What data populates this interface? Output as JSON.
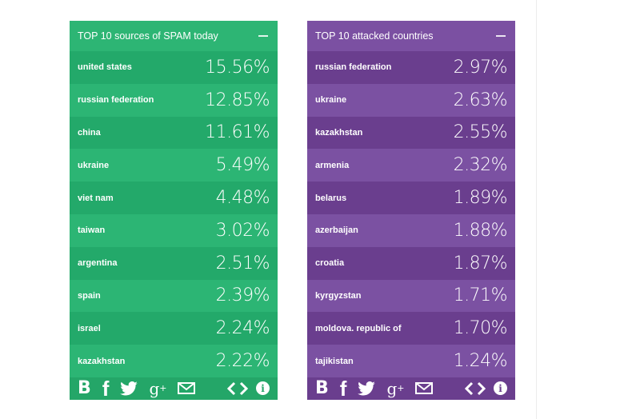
{
  "panels": [
    {
      "title": "TOP 10 sources of SPAM today",
      "accent": "#2db574",
      "rows": [
        {
          "name": "united states",
          "value": "15.56%"
        },
        {
          "name": "russian federation",
          "value": "12.85%"
        },
        {
          "name": "china",
          "value": "11.61%"
        },
        {
          "name": "ukraine",
          "value": "5.49%"
        },
        {
          "name": "viet nam",
          "value": "4.48%"
        },
        {
          "name": "taiwan",
          "value": "3.02%"
        },
        {
          "name": "argentina",
          "value": "2.51%"
        },
        {
          "name": "spain",
          "value": "2.39%"
        },
        {
          "name": "israel",
          "value": "2.24%"
        },
        {
          "name": "kazakhstan",
          "value": "2.22%"
        }
      ]
    },
    {
      "title": "TOP 10 attacked countries",
      "accent": "#7b50a2",
      "rows": [
        {
          "name": "russian federation",
          "value": "2.97%"
        },
        {
          "name": "ukraine",
          "value": "2.63%"
        },
        {
          "name": "kazakhstan",
          "value": "2.55%"
        },
        {
          "name": "armenia",
          "value": "2.32%"
        },
        {
          "name": "belarus",
          "value": "1.89%"
        },
        {
          "name": "azerbaijan",
          "value": "1.88%"
        },
        {
          "name": "croatia",
          "value": "1.87%"
        },
        {
          "name": "kyrgyzstan",
          "value": "1.71%"
        },
        {
          "name": "moldova. republic of",
          "value": "1.70%"
        },
        {
          "name": "tajikistan",
          "value": "1.24%"
        }
      ]
    }
  ],
  "footer_icons": [
    {
      "name": "blogger-icon",
      "glyph": "B"
    },
    {
      "name": "facebook-icon",
      "glyph": "f"
    },
    {
      "name": "twitter-icon",
      "glyph": "🐦"
    },
    {
      "name": "google-plus-icon",
      "glyph": "g+"
    },
    {
      "name": "email-icon",
      "glyph": "✉"
    },
    {
      "name": "embed-code-icon",
      "glyph": "<>"
    },
    {
      "name": "info-icon",
      "glyph": "i"
    }
  ]
}
